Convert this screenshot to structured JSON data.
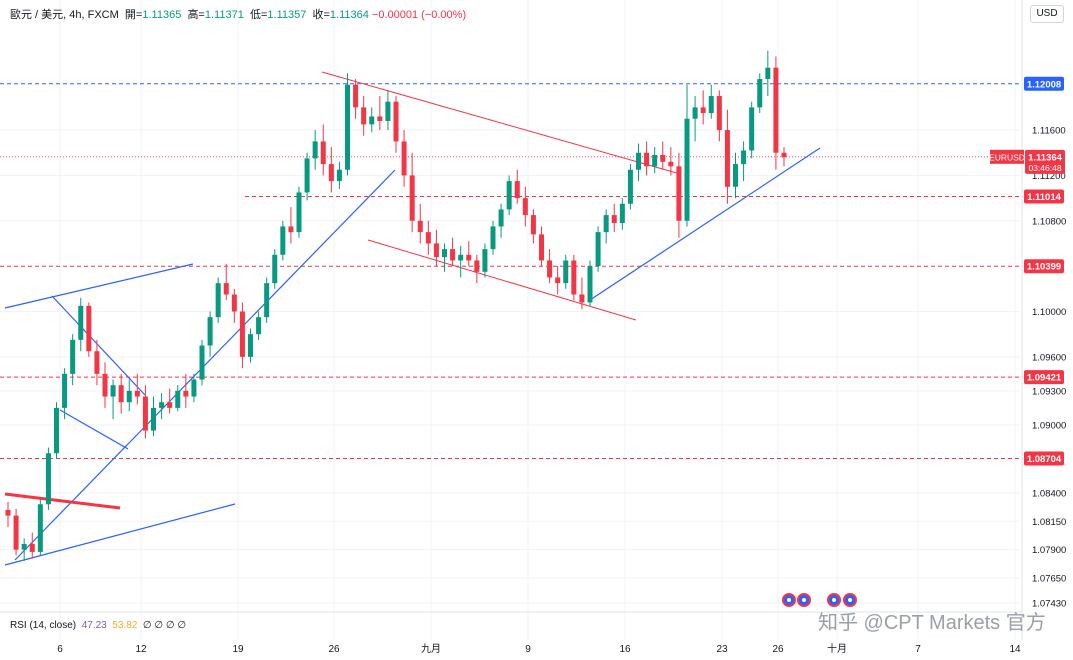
{
  "header": {
    "symbol": "歐元 / 美元, 4h, FXCM",
    "o_label": "開=",
    "o": "1.11365",
    "h_label": "高=",
    "h": "1.11371",
    "l_label": "低=",
    "l": "1.11357",
    "c_label": "收=",
    "c": "1.11364",
    "chg": "−0.00001 (−0.00%)"
  },
  "currency_button": "USD",
  "rsi": {
    "label": "RSI (14, close)",
    "v1": "47.23",
    "v2": "53.82",
    "rest": "∅ ∅ ∅ ∅"
  },
  "watermark": "知乎 @CPT Markets 官方",
  "colors": {
    "up": "#089981",
    "down": "#f23645",
    "trend_blue": "#2962ff",
    "channel_red": "#f23645"
  },
  "chart_data": {
    "type": "candlestick",
    "title": "",
    "y_axis_ticks": [
      "1.11600",
      "1.11200",
      "1.10800",
      "1.10000",
      "1.09600",
      "1.09300",
      "1.09000",
      "1.08400",
      "1.08150",
      "1.07900",
      "1.07650",
      "1.07430"
    ],
    "x_axis_ticks": [
      "6",
      "12",
      "19",
      "26",
      "九月",
      "9",
      "16",
      "23",
      "26",
      "十月",
      "7",
      "14"
    ],
    "price_labels": [
      {
        "value": "1.12008",
        "style": "blue-dashed"
      },
      {
        "value": "1.11014",
        "style": "red-dashed"
      },
      {
        "value": "1.10399",
        "style": "red-dashed"
      },
      {
        "value": "1.09421",
        "style": "red-dashed"
      },
      {
        "value": "1.08704",
        "style": "red-dashed"
      }
    ],
    "current_price": {
      "symbol": "EURUSD",
      "value": "1.11364",
      "countdown": "03:46:48"
    },
    "ylim": [
      1.0735,
      1.125
    ],
    "ohlc": [
      [
        1.0825,
        1.0832,
        1.081,
        1.082
      ],
      [
        1.082,
        1.0826,
        1.0785,
        1.079
      ],
      [
        1.079,
        1.08,
        1.078,
        1.0795
      ],
      [
        1.0795,
        1.0805,
        1.0782,
        1.0788
      ],
      [
        1.0788,
        1.0835,
        1.0785,
        1.083
      ],
      [
        1.083,
        1.088,
        1.0825,
        1.0875
      ],
      [
        1.0875,
        1.092,
        1.087,
        1.0915
      ],
      [
        1.0915,
        1.095,
        1.0905,
        1.0945
      ],
      [
        1.0945,
        1.098,
        1.0935,
        1.0975
      ],
      [
        1.0975,
        1.1012,
        1.0965,
        1.1005
      ],
      [
        1.1005,
        1.1008,
        1.096,
        1.0965
      ],
      [
        1.0965,
        1.0975,
        1.0935,
        1.0945
      ],
      [
        1.0945,
        1.0955,
        1.0915,
        1.0925
      ],
      [
        1.0925,
        1.094,
        1.0905,
        1.0935
      ],
      [
        1.0935,
        1.0945,
        1.091,
        1.092
      ],
      [
        1.092,
        1.094,
        1.0912,
        1.093
      ],
      [
        1.093,
        1.0945,
        1.0918,
        1.0925
      ],
      [
        1.0925,
        1.0935,
        1.0888,
        1.0895
      ],
      [
        1.0895,
        1.0925,
        1.089,
        1.0915
      ],
      [
        1.0915,
        1.0928,
        1.0905,
        1.092
      ],
      [
        1.092,
        1.0932,
        1.091,
        1.0915
      ],
      [
        1.0915,
        1.0935,
        1.0912,
        1.093
      ],
      [
        1.093,
        1.0945,
        1.0915,
        1.0925
      ],
      [
        1.0925,
        1.0945,
        1.092,
        1.094
      ],
      [
        1.094,
        1.0975,
        1.0935,
        1.097
      ],
      [
        1.097,
        1.1,
        1.096,
        1.0995
      ],
      [
        1.0995,
        1.103,
        1.099,
        1.1025
      ],
      [
        1.1025,
        1.1042,
        1.101,
        1.1015
      ],
      [
        1.1015,
        1.102,
        1.099,
        1.1
      ],
      [
        1.1,
        1.1008,
        1.095,
        1.096
      ],
      [
        1.096,
        1.0985,
        1.0955,
        1.098
      ],
      [
        1.098,
        1.1,
        1.0975,
        1.0995
      ],
      [
        1.0995,
        1.103,
        1.099,
        1.1025
      ],
      [
        1.1025,
        1.1055,
        1.102,
        1.105
      ],
      [
        1.105,
        1.108,
        1.1045,
        1.1075
      ],
      [
        1.1075,
        1.1092,
        1.106,
        1.107
      ],
      [
        1.107,
        1.111,
        1.1065,
        1.1105
      ],
      [
        1.1105,
        1.114,
        1.1098,
        1.1135
      ],
      [
        1.1135,
        1.116,
        1.1125,
        1.115
      ],
      [
        1.115,
        1.1165,
        1.112,
        1.113
      ],
      [
        1.113,
        1.1145,
        1.1105,
        1.1115
      ],
      [
        1.1115,
        1.1132,
        1.1108,
        1.1125
      ],
      [
        1.1125,
        1.121,
        1.112,
        1.12
      ],
      [
        1.12,
        1.1205,
        1.117,
        1.118
      ],
      [
        1.118,
        1.119,
        1.1155,
        1.1165
      ],
      [
        1.1165,
        1.118,
        1.1158,
        1.1172
      ],
      [
        1.1172,
        1.119,
        1.116,
        1.1168
      ],
      [
        1.1168,
        1.1195,
        1.116,
        1.1185
      ],
      [
        1.1185,
        1.119,
        1.114,
        1.115
      ],
      [
        1.115,
        1.116,
        1.111,
        1.112
      ],
      [
        1.112,
        1.114,
        1.107,
        1.108
      ],
      [
        1.108,
        1.1095,
        1.106,
        1.107
      ],
      [
        1.107,
        1.108,
        1.105,
        1.106
      ],
      [
        1.106,
        1.1072,
        1.104,
        1.1048
      ],
      [
        1.1048,
        1.106,
        1.1035,
        1.1055
      ],
      [
        1.1055,
        1.1065,
        1.104,
        1.1045
      ],
      [
        1.1045,
        1.1058,
        1.103,
        1.105
      ],
      [
        1.105,
        1.1062,
        1.104,
        1.1045
      ],
      [
        1.1045,
        1.105,
        1.1025,
        1.1035
      ],
      [
        1.1035,
        1.106,
        1.103,
        1.1055
      ],
      [
        1.1055,
        1.108,
        1.105,
        1.1075
      ],
      [
        1.1075,
        1.1095,
        1.1065,
        1.109
      ],
      [
        1.109,
        1.112,
        1.1085,
        1.1115
      ],
      [
        1.1115,
        1.1125,
        1.1095,
        1.11
      ],
      [
        1.11,
        1.111,
        1.1075,
        1.1085
      ],
      [
        1.1085,
        1.109,
        1.106,
        1.1068
      ],
      [
        1.1068,
        1.1075,
        1.104,
        1.1045
      ],
      [
        1.1045,
        1.1055,
        1.1025,
        1.103
      ],
      [
        1.103,
        1.104,
        1.1015,
        1.1025
      ],
      [
        1.1025,
        1.105,
        1.102,
        1.1045
      ],
      [
        1.1045,
        1.105,
        1.101,
        1.1015
      ],
      [
        1.1015,
        1.103,
        1.1002,
        1.1008
      ],
      [
        1.1008,
        1.1045,
        1.1005,
        1.104
      ],
      [
        1.104,
        1.1075,
        1.1035,
        1.107
      ],
      [
        1.107,
        1.109,
        1.106,
        1.1085
      ],
      [
        1.1085,
        1.1095,
        1.107,
        1.1078
      ],
      [
        1.1078,
        1.11,
        1.1072,
        1.1095
      ],
      [
        1.1095,
        1.113,
        1.109,
        1.1125
      ],
      [
        1.1125,
        1.1148,
        1.1115,
        1.114
      ],
      [
        1.114,
        1.115,
        1.112,
        1.1128
      ],
      [
        1.1128,
        1.1145,
        1.1122,
        1.1138
      ],
      [
        1.1138,
        1.115,
        1.1125,
        1.1132
      ],
      [
        1.1132,
        1.1145,
        1.112,
        1.1128
      ],
      [
        1.1128,
        1.114,
        1.1065,
        1.108
      ],
      [
        1.108,
        1.12,
        1.1075,
        1.117
      ],
      [
        1.117,
        1.119,
        1.115,
        1.118
      ],
      [
        1.118,
        1.1195,
        1.1165,
        1.1175
      ],
      [
        1.1175,
        1.12,
        1.117,
        1.119
      ],
      [
        1.119,
        1.1195,
        1.115,
        1.116
      ],
      [
        1.116,
        1.1178,
        1.1095,
        1.111
      ],
      [
        1.111,
        1.114,
        1.11,
        1.113
      ],
      [
        1.113,
        1.115,
        1.1115,
        1.1142
      ],
      [
        1.1142,
        1.1185,
        1.1135,
        1.118
      ],
      [
        1.118,
        1.121,
        1.1175,
        1.1205
      ],
      [
        1.1205,
        1.123,
        1.119,
        1.1215
      ],
      [
        1.1215,
        1.1225,
        1.1125,
        1.114
      ],
      [
        1.114,
        1.1145,
        1.1128,
        1.1136
      ]
    ]
  }
}
